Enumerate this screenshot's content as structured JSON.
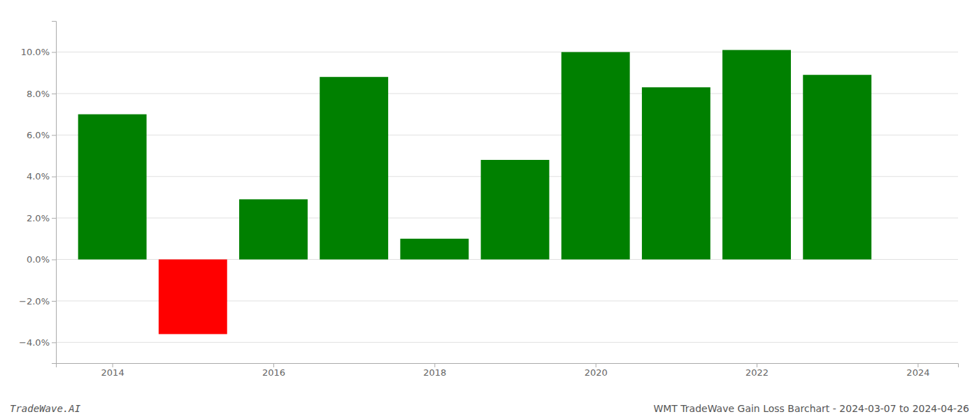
{
  "chart_data": {
    "type": "bar",
    "x": [
      2014,
      2015,
      2016,
      2017,
      2018,
      2019,
      2020,
      2021,
      2022,
      2023
    ],
    "values": [
      0.07,
      -0.036,
      0.029,
      0.088,
      0.01,
      0.048,
      0.1,
      0.083,
      0.101,
      0.089
    ],
    "colors": [
      "#008000",
      "#ff0000",
      "#008000",
      "#008000",
      "#008000",
      "#008000",
      "#008000",
      "#008000",
      "#008000",
      "#008000"
    ],
    "xlim": [
      2013.3,
      2024.5
    ],
    "xticks": [
      2014,
      2016,
      2018,
      2020,
      2022,
      2024
    ],
    "ylim": [
      -0.05,
      0.115
    ],
    "yticks": [
      {
        "value": -0.04,
        "label": "−4.0%"
      },
      {
        "value": -0.02,
        "label": "−2.0%"
      },
      {
        "value": 0.0,
        "label": "0.0%"
      },
      {
        "value": 0.02,
        "label": "2.0%"
      },
      {
        "value": 0.04,
        "label": "4.0%"
      },
      {
        "value": 0.06,
        "label": "6.0%"
      },
      {
        "value": 0.08,
        "label": "8.0%"
      },
      {
        "value": 0.1,
        "label": "10.0%"
      }
    ],
    "grid": true,
    "annotations": [
      "TradeWave.AI",
      "WMT TradeWave Gain Loss Barchart - 2024-03-07 to 2024-04-26"
    ]
  }
}
